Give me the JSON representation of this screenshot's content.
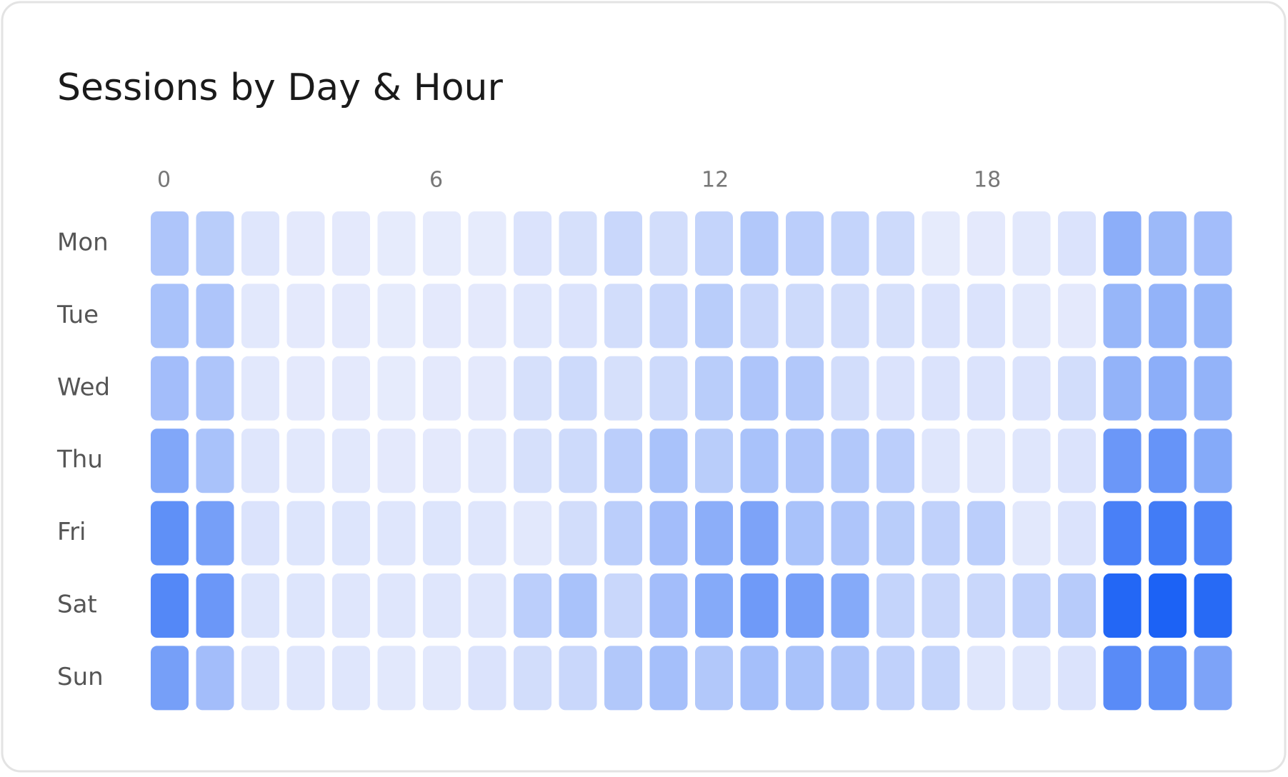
{
  "chart_data": {
    "type": "heatmap",
    "title": "Sessions by Day & Hour",
    "categories": [
      0,
      null,
      null,
      null,
      null,
      null,
      6,
      null,
      null,
      null,
      null,
      null,
      12,
      null,
      null,
      null,
      null,
      null,
      18,
      null,
      null,
      null,
      null,
      null
    ],
    "color_scale": [
      "#e6ebfc",
      "#1c62f5"
    ],
    "series": [
      {
        "name": "Mon",
        "values": [
          30,
          25,
          8,
          6,
          6,
          5,
          5,
          5,
          10,
          12,
          18,
          14,
          20,
          28,
          24,
          20,
          16,
          5,
          6,
          7,
          10,
          45,
          38,
          35
        ]
      },
      {
        "name": "Tue",
        "values": [
          32,
          30,
          7,
          6,
          6,
          5,
          6,
          6,
          8,
          10,
          14,
          18,
          25,
          18,
          16,
          14,
          12,
          10,
          10,
          7,
          6,
          40,
          42,
          40
        ]
      },
      {
        "name": "Wed",
        "values": [
          35,
          30,
          7,
          6,
          6,
          5,
          6,
          6,
          12,
          16,
          12,
          16,
          25,
          30,
          28,
          14,
          10,
          10,
          10,
          10,
          14,
          42,
          45,
          42
        ]
      },
      {
        "name": "Thu",
        "values": [
          50,
          32,
          8,
          7,
          7,
          6,
          6,
          7,
          12,
          16,
          24,
          32,
          25,
          32,
          30,
          28,
          24,
          8,
          7,
          8,
          10,
          60,
          62,
          48
        ]
      },
      {
        "name": "Fri",
        "values": [
          65,
          55,
          10,
          9,
          9,
          8,
          9,
          8,
          7,
          14,
          24,
          35,
          45,
          52,
          32,
          30,
          25,
          22,
          24,
          7,
          10,
          75,
          78,
          72
        ]
      },
      {
        "name": "Sat",
        "values": [
          70,
          60,
          9,
          9,
          8,
          8,
          8,
          8,
          24,
          32,
          18,
          35,
          48,
          58,
          55,
          48,
          20,
          18,
          18,
          22,
          26,
          92,
          95,
          90
        ]
      },
      {
        "name": "Sun",
        "values": [
          55,
          35,
          8,
          8,
          8,
          7,
          7,
          10,
          14,
          18,
          28,
          34,
          28,
          34,
          32,
          30,
          22,
          20,
          8,
          8,
          10,
          68,
          65,
          52
        ]
      }
    ]
  }
}
